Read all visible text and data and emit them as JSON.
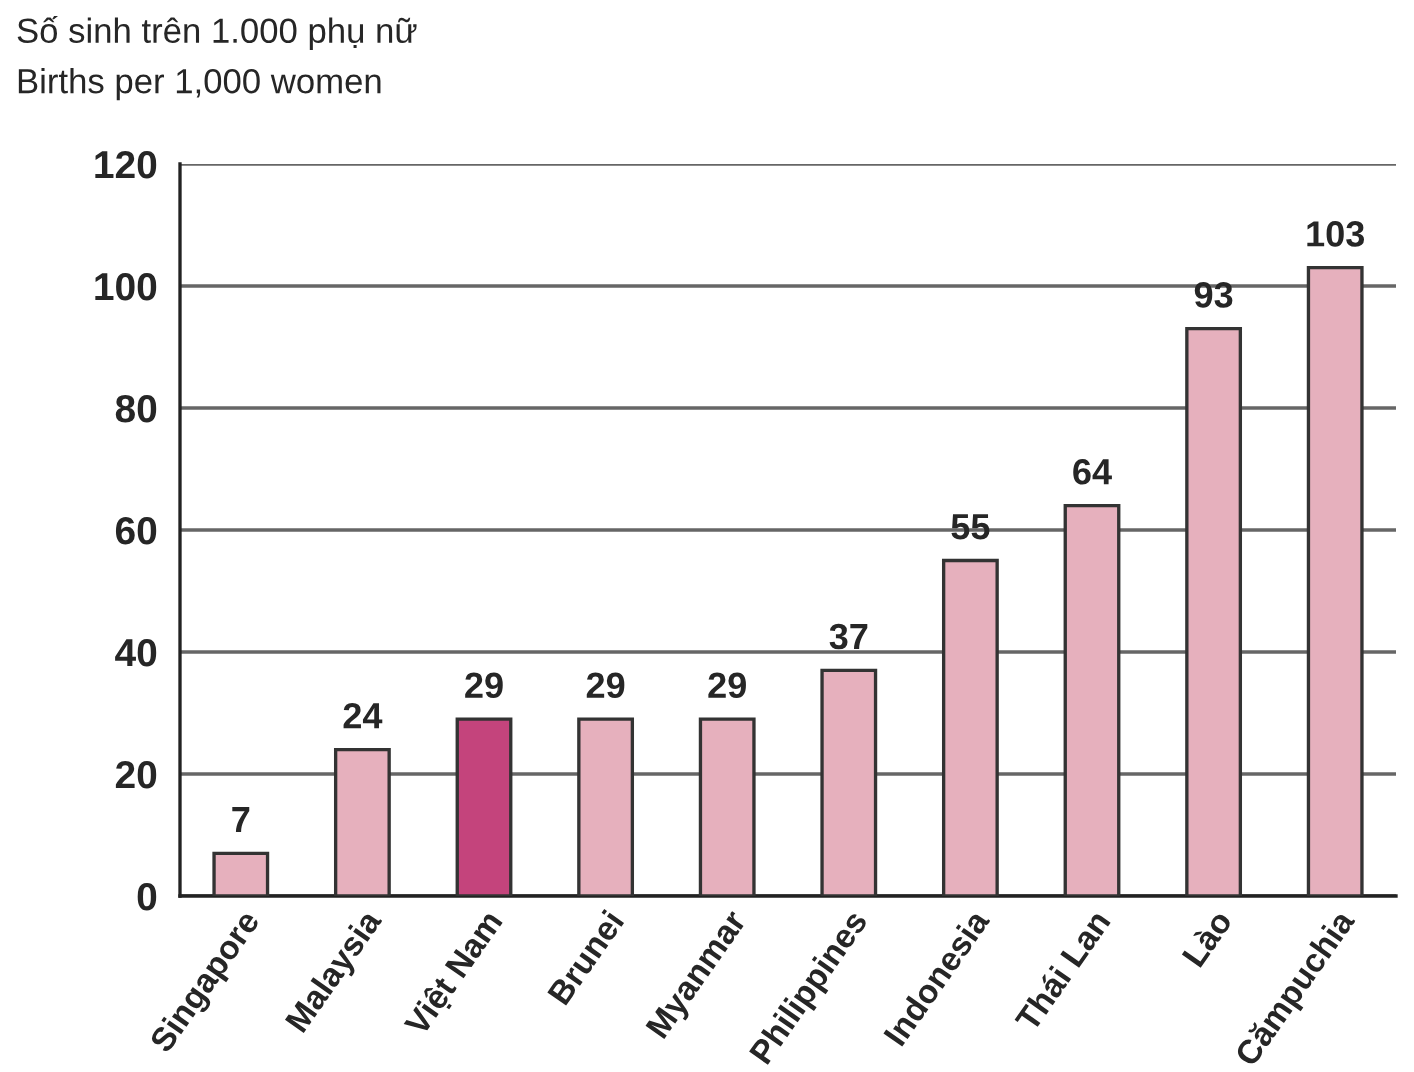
{
  "chart_data": {
    "type": "bar",
    "title": "Số sinh trên 1.000 phụ nữ",
    "subtitle": "Births per 1,000 women",
    "categories": [
      "Singapore",
      "Malaysia",
      "Việt Nam",
      "Brunei",
      "Myanmar",
      "Philippines",
      "Indonesia",
      "Thái Lan",
      "Lào",
      "Cămpuchia"
    ],
    "values": [
      7,
      24,
      29,
      29,
      29,
      37,
      55,
      64,
      93,
      103
    ],
    "colors": [
      "#e6b0bd",
      "#e6b0bd",
      "#c4447c",
      "#e6b0bd",
      "#e6b0bd",
      "#e6b0bd",
      "#e6b0bd",
      "#e6b0bd",
      "#e6b0bd",
      "#e6b0bd"
    ],
    "ylim": [
      0,
      120
    ],
    "yticks": [
      0,
      20,
      40,
      60,
      80,
      100,
      120
    ],
    "grid": "y",
    "data_labels": true
  }
}
